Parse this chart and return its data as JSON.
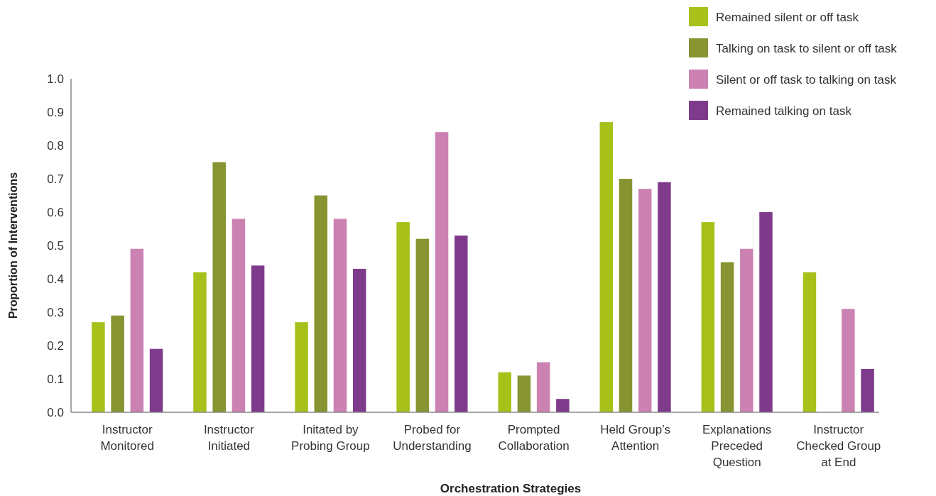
{
  "chart_data": {
    "type": "bar",
    "xlabel": "Orchestration Strategies",
    "ylabel": "Proportion of Interventions",
    "categories": [
      "Instructor Monitored",
      "Instructor Initiated",
      "Initated by Probing Group",
      "Probed for Understanding",
      "Prompted Collaboration",
      "Held Group’s Attention",
      "Explanations Preceded Question",
      "Instructor Checked Group at End"
    ],
    "series": [
      {
        "name": "Remained silent or off task",
        "color": "#a8c01a",
        "values": [
          0.27,
          0.42,
          0.27,
          0.57,
          0.12,
          0.87,
          0.57,
          0.42
        ]
      },
      {
        "name": "Talking on task to silent or off task",
        "color": "#889431",
        "values": [
          0.29,
          0.75,
          0.65,
          0.52,
          0.11,
          0.7,
          0.45,
          0
        ]
      },
      {
        "name": "Silent or off task to talking on task",
        "color": "#cb82b2",
        "values": [
          0.49,
          0.58,
          0.58,
          0.84,
          0.15,
          0.67,
          0.49,
          0.31
        ]
      },
      {
        "name": "Remained talking on task",
        "color": "#7f3b8b",
        "values": [
          0.19,
          0.44,
          0.43,
          0.53,
          0.04,
          0.69,
          0.6,
          0.13
        ]
      }
    ],
    "ylim": [
      0,
      1.0
    ],
    "yticks": [
      {
        "value": 0,
        "label": "0.0"
      },
      0.1,
      0.2,
      0.3,
      0.4,
      0.5,
      0.6,
      0.7,
      0.8,
      0.9,
      {
        "value": 1,
        "label": "1.0"
      }
    ],
    "grid": false,
    "legend": "top right"
  }
}
